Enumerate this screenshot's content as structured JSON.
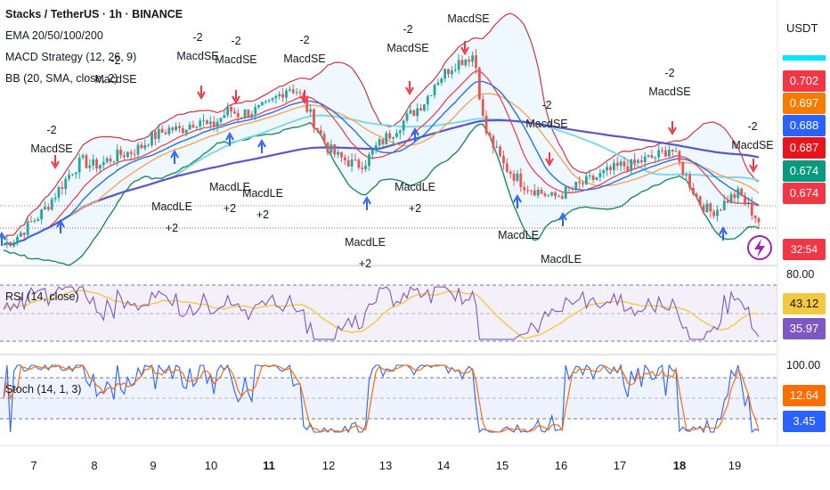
{
  "header": {
    "symbol_line": "Stacks / TetherUS · 1h · BINANCE",
    "ema_label": "EMA 20/50/100/200",
    "macd_label": "MACD Strategy (12, 26, 9)",
    "bb_label": "BB (20, SMA, close, 2)",
    "currency": "USDT",
    "countdown": "32:54"
  },
  "colors": {
    "up": "#26a69a",
    "down": "#ef5350",
    "ema20": "#f23645",
    "ema50": "#f7a35c",
    "ema100": "#7fd8e8",
    "ema200": "#5b55c9",
    "bb_upper": "#d0343f",
    "bb_lower": "#1e8a5a",
    "bb_basis": "#2b6de0",
    "rsi": "#7e57c2",
    "rsi_ma": "#f5c842",
    "stoch_k": "#2962ff",
    "stoch_d": "#ff6d00"
  },
  "price_labels": [
    {
      "text": "0.702",
      "color": "#f23645"
    },
    {
      "text": "0.697",
      "color": "#f57c00"
    },
    {
      "text": "0.688",
      "color": "#2962ff"
    },
    {
      "text": "0.687",
      "color": "#e8141c"
    },
    {
      "text": "0.674",
      "color": "#089981"
    },
    {
      "text": "0.674",
      "color": "#f23645"
    }
  ],
  "rsi_panel": {
    "label": "RSI (14, close)",
    "top_scale": "80.00",
    "value_ma": "43.12",
    "value_rsi": "35.97"
  },
  "stoch_panel": {
    "label": "Stoch (14, 1, 3)",
    "top_scale": "100.00",
    "value_d": "12.64",
    "value_k": "3.45"
  },
  "chart_data": {
    "type": "candlestick",
    "x_ticks": [
      "7",
      "8",
      "9",
      "10",
      "11",
      "12",
      "13",
      "14",
      "15",
      "16",
      "17",
      "18",
      "19"
    ],
    "bold_ticks": [
      "11",
      "18"
    ],
    "price_close_series": [
      0.575,
      0.58,
      0.59,
      0.6,
      0.61,
      0.625,
      0.64,
      0.655,
      0.665,
      0.66,
      0.662,
      0.668,
      0.672,
      0.675,
      0.68,
      0.69,
      0.695,
      0.7,
      0.698,
      0.705,
      0.71,
      0.7,
      0.71,
      0.72,
      0.715,
      0.718,
      0.72,
      0.725,
      0.735,
      0.745,
      0.74,
      0.72,
      0.7,
      0.68,
      0.67,
      0.665,
      0.66,
      0.665,
      0.68,
      0.69,
      0.7,
      0.71,
      0.72,
      0.73,
      0.75,
      0.76,
      0.77,
      0.775,
      0.78,
      0.7,
      0.68,
      0.66,
      0.65,
      0.64,
      0.635,
      0.63,
      0.625,
      0.63,
      0.635,
      0.64,
      0.645,
      0.65,
      0.655,
      0.66,
      0.66,
      0.665,
      0.668,
      0.672,
      0.68,
      0.66,
      0.64,
      0.62,
      0.61,
      0.615,
      0.625,
      0.63,
      0.615,
      0.6
    ],
    "signals": [
      {
        "type": "short",
        "text": "-2 MacdSE"
      },
      {
        "type": "short",
        "text": "-2 MacdSE"
      },
      {
        "type": "short",
        "text": "-2 MacdSE"
      },
      {
        "type": "short",
        "text": "-2 MacdSE"
      },
      {
        "type": "short",
        "text": "-2 MacdSE"
      },
      {
        "type": "short",
        "text": "MacdSE"
      },
      {
        "type": "short",
        "text": "-2 MacdSE"
      },
      {
        "type": "short",
        "text": "-2 MacdSE"
      },
      {
        "type": "short",
        "text": "-2 MacdSE"
      },
      {
        "type": "short",
        "text": "-2 MacdSE"
      },
      {
        "type": "long",
        "text": "MacdLE +2"
      },
      {
        "type": "long",
        "text": "MacdLE +2"
      },
      {
        "type": "long",
        "text": "MacdLE +2"
      },
      {
        "type": "long",
        "text": "MacdLE +2"
      },
      {
        "type": "long",
        "text": "MacdLE +2"
      },
      {
        "type": "long",
        "text": "MacdLE"
      },
      {
        "type": "long",
        "text": "MacdLE"
      }
    ],
    "rsi_ylim": [
      20,
      80
    ],
    "stoch_ylim": [
      0,
      100
    ]
  }
}
